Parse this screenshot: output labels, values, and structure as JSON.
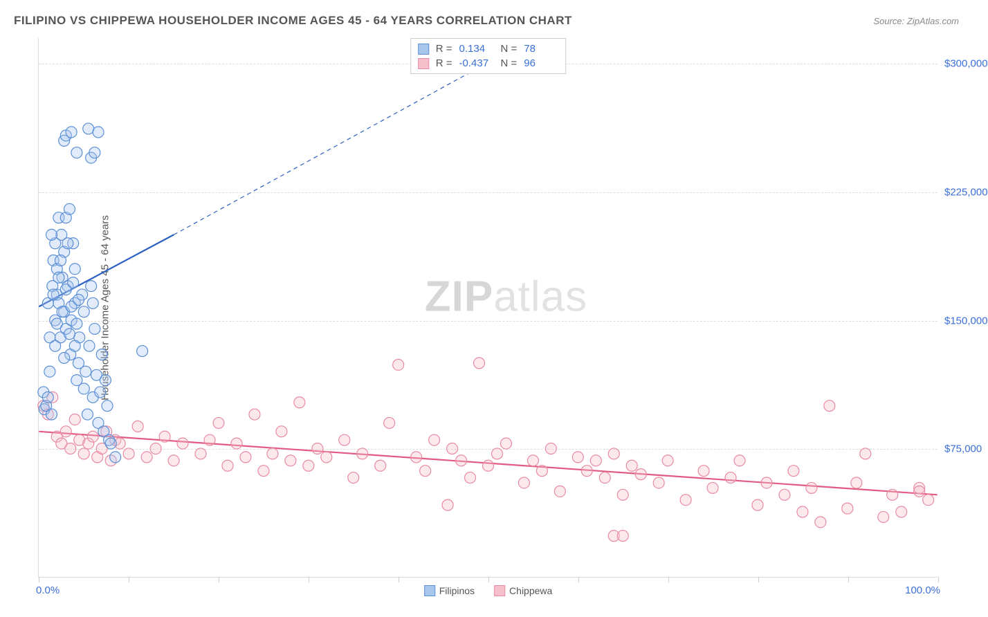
{
  "header": {
    "title": "FILIPINO VS CHIPPEWA HOUSEHOLDER INCOME AGES 45 - 64 YEARS CORRELATION CHART",
    "source_label": "Source: ZipAtlas.com"
  },
  "watermark": {
    "zip": "ZIP",
    "atlas": "atlas"
  },
  "chart": {
    "type": "scatter",
    "ylabel": "Householder Income Ages 45 - 64 years",
    "xlim": [
      0,
      100
    ],
    "ylim": [
      0,
      315000
    ],
    "x_ticks": [
      0,
      10,
      20,
      30,
      40,
      50,
      60,
      70,
      80,
      90,
      100
    ],
    "x_axis_min_label": "0.0%",
    "x_axis_max_label": "100.0%",
    "y_ticks": [
      {
        "value": 75000,
        "label": "$75,000"
      },
      {
        "value": 150000,
        "label": "$150,000"
      },
      {
        "value": 225000,
        "label": "$225,000"
      },
      {
        "value": 300000,
        "label": "$300,000"
      }
    ],
    "background_color": "#ffffff",
    "grid_color": "#dddddd",
    "marker_radius": 8,
    "marker_fill_opacity": 0.35,
    "marker_stroke_width": 1.2,
    "trend_stroke_width": 2.2,
    "series": [
      {
        "name": "Filipinos",
        "color_fill": "#a9c6ed",
        "color_stroke": "#5b8fd6",
        "trend_color": "#2b5fc2",
        "r_value": "0.134",
        "n_value": "78",
        "trend": {
          "x1": 0,
          "y1": 158000,
          "x2_solid": 15,
          "y2_solid": 200000,
          "x2_dash": 55,
          "y2_dash": 315000
        },
        "points": [
          [
            0.5,
            108000
          ],
          [
            0.6,
            98000
          ],
          [
            0.8,
            100000
          ],
          [
            1.0,
            105000
          ],
          [
            1.0,
            160000
          ],
          [
            1.2,
            140000
          ],
          [
            1.4,
            95000
          ],
          [
            1.5,
            170000
          ],
          [
            1.6,
            185000
          ],
          [
            1.8,
            150000
          ],
          [
            1.8,
            195000
          ],
          [
            2.0,
            165000
          ],
          [
            2.0,
            180000
          ],
          [
            2.2,
            210000
          ],
          [
            2.2,
            160000
          ],
          [
            2.4,
            140000
          ],
          [
            2.5,
            200000
          ],
          [
            2.6,
            175000
          ],
          [
            2.8,
            155000
          ],
          [
            2.8,
            190000
          ],
          [
            3.0,
            210000
          ],
          [
            3.0,
            145000
          ],
          [
            3.2,
            170000
          ],
          [
            3.4,
            215000
          ],
          [
            3.5,
            130000
          ],
          [
            3.6,
            150000
          ],
          [
            3.8,
            195000
          ],
          [
            4.0,
            180000
          ],
          [
            4.0,
            160000
          ],
          [
            4.2,
            115000
          ],
          [
            4.4,
            125000
          ],
          [
            4.5,
            140000
          ],
          [
            4.8,
            165000
          ],
          [
            5.0,
            110000
          ],
          [
            5.0,
            155000
          ],
          [
            5.2,
            120000
          ],
          [
            5.4,
            95000
          ],
          [
            5.6,
            135000
          ],
          [
            5.8,
            170000
          ],
          [
            6.0,
            105000
          ],
          [
            6.0,
            160000
          ],
          [
            6.2,
            145000
          ],
          [
            6.4,
            118000
          ],
          [
            6.6,
            90000
          ],
          [
            6.8,
            108000
          ],
          [
            7.0,
            130000
          ],
          [
            7.2,
            85000
          ],
          [
            7.4,
            115000
          ],
          [
            7.6,
            100000
          ],
          [
            7.8,
            80000
          ],
          [
            8.0,
            78000
          ],
          [
            8.5,
            70000
          ],
          [
            2.8,
            255000
          ],
          [
            3.0,
            258000
          ],
          [
            3.6,
            260000
          ],
          [
            4.2,
            248000
          ],
          [
            5.5,
            262000
          ],
          [
            6.6,
            260000
          ],
          [
            5.8,
            245000
          ],
          [
            6.2,
            248000
          ],
          [
            11.5,
            132000
          ],
          [
            1.2,
            120000
          ],
          [
            1.4,
            200000
          ],
          [
            1.6,
            165000
          ],
          [
            1.8,
            135000
          ],
          [
            2.0,
            148000
          ],
          [
            2.2,
            175000
          ],
          [
            2.4,
            185000
          ],
          [
            2.6,
            155000
          ],
          [
            2.8,
            128000
          ],
          [
            3.0,
            168000
          ],
          [
            3.2,
            195000
          ],
          [
            3.4,
            142000
          ],
          [
            3.6,
            158000
          ],
          [
            3.8,
            172000
          ],
          [
            4.0,
            135000
          ],
          [
            4.2,
            148000
          ],
          [
            4.4,
            162000
          ]
        ]
      },
      {
        "name": "Chippewa",
        "color_fill": "#f5c0cc",
        "color_stroke": "#e88aa2",
        "trend_color": "#e15a82",
        "r_value": "-0.437",
        "n_value": "96",
        "trend": {
          "x1": 0,
          "y1": 85000,
          "x2_solid": 100,
          "y2_solid": 48000
        },
        "points": [
          [
            0.5,
            100000
          ],
          [
            1.0,
            95000
          ],
          [
            1.5,
            105000
          ],
          [
            2.0,
            82000
          ],
          [
            2.5,
            78000
          ],
          [
            3.0,
            85000
          ],
          [
            3.5,
            75000
          ],
          [
            4.0,
            92000
          ],
          [
            4.5,
            80000
          ],
          [
            5.0,
            72000
          ],
          [
            5.5,
            78000
          ],
          [
            6.0,
            82000
          ],
          [
            6.5,
            70000
          ],
          [
            7.0,
            75000
          ],
          [
            7.5,
            85000
          ],
          [
            8.0,
            68000
          ],
          [
            8.5,
            80000
          ],
          [
            9.0,
            78000
          ],
          [
            10.0,
            72000
          ],
          [
            11.0,
            88000
          ],
          [
            12.0,
            70000
          ],
          [
            13.0,
            75000
          ],
          [
            14.0,
            82000
          ],
          [
            15.0,
            68000
          ],
          [
            16.0,
            78000
          ],
          [
            18.0,
            72000
          ],
          [
            19.0,
            80000
          ],
          [
            20.0,
            90000
          ],
          [
            21.0,
            65000
          ],
          [
            22.0,
            78000
          ],
          [
            23.0,
            70000
          ],
          [
            24.0,
            95000
          ],
          [
            25.0,
            62000
          ],
          [
            26.0,
            72000
          ],
          [
            27.0,
            85000
          ],
          [
            28.0,
            68000
          ],
          [
            29.0,
            102000
          ],
          [
            30.0,
            65000
          ],
          [
            31.0,
            75000
          ],
          [
            32.0,
            70000
          ],
          [
            34.0,
            80000
          ],
          [
            35.0,
            58000
          ],
          [
            36.0,
            72000
          ],
          [
            38.0,
            65000
          ],
          [
            39.0,
            90000
          ],
          [
            40.0,
            124000
          ],
          [
            42.0,
            70000
          ],
          [
            43.0,
            62000
          ],
          [
            44.0,
            80000
          ],
          [
            45.5,
            42000
          ],
          [
            46.0,
            75000
          ],
          [
            47.0,
            68000
          ],
          [
            48.0,
            58000
          ],
          [
            49.0,
            125000
          ],
          [
            50.0,
            65000
          ],
          [
            51.0,
            72000
          ],
          [
            52.0,
            78000
          ],
          [
            54.0,
            55000
          ],
          [
            55.0,
            68000
          ],
          [
            56.0,
            62000
          ],
          [
            57.0,
            75000
          ],
          [
            58.0,
            50000
          ],
          [
            60.0,
            70000
          ],
          [
            61.0,
            62000
          ],
          [
            62.0,
            68000
          ],
          [
            63.0,
            58000
          ],
          [
            64.0,
            72000
          ],
          [
            65.0,
            48000
          ],
          [
            64.0,
            24000
          ],
          [
            65.0,
            24000
          ],
          [
            66.0,
            65000
          ],
          [
            67.0,
            60000
          ],
          [
            69.0,
            55000
          ],
          [
            70.0,
            68000
          ],
          [
            72.0,
            45000
          ],
          [
            74.0,
            62000
          ],
          [
            75.0,
            52000
          ],
          [
            77.0,
            58000
          ],
          [
            78.0,
            68000
          ],
          [
            80.0,
            42000
          ],
          [
            81.0,
            55000
          ],
          [
            83.0,
            48000
          ],
          [
            84.0,
            62000
          ],
          [
            85.0,
            38000
          ],
          [
            86.0,
            52000
          ],
          [
            87.0,
            32000
          ],
          [
            88.0,
            100000
          ],
          [
            90.0,
            40000
          ],
          [
            91.0,
            55000
          ],
          [
            92.0,
            72000
          ],
          [
            94.0,
            35000
          ],
          [
            95.0,
            48000
          ],
          [
            96.0,
            38000
          ],
          [
            98.0,
            52000
          ],
          [
            99.0,
            45000
          ],
          [
            98.0,
            50000
          ]
        ]
      }
    ],
    "legend_labels": {
      "series1": "Filipinos",
      "series2": "Chippewa"
    },
    "stats_labels": {
      "r": "R =",
      "n": "N ="
    }
  }
}
